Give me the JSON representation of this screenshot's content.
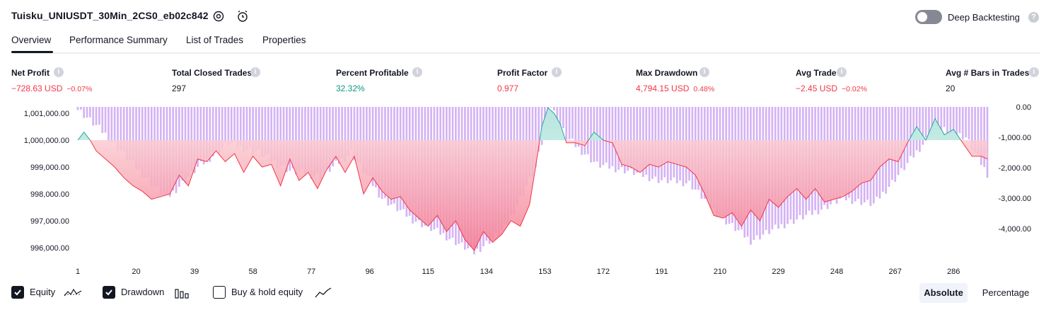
{
  "header": {
    "strategy_name": "Tuisku_UNIUSDT_30Min_2CS0_eb02c842",
    "deep_backtesting_label": "Deep Backtesting",
    "deep_backtesting_on": false
  },
  "tabs": [
    {
      "label": "Overview",
      "active": true
    },
    {
      "label": "Performance Summary",
      "active": false
    },
    {
      "label": "List of Trades",
      "active": false
    },
    {
      "label": "Properties",
      "active": false
    }
  ],
  "metrics": [
    {
      "label": "Net Profit",
      "value": "−728.63 USD",
      "pct": "−0.07%",
      "color": "#f23645"
    },
    {
      "label": "Total Closed Trades",
      "value": "297",
      "pct": "",
      "color": "#131722"
    },
    {
      "label": "Percent Profitable",
      "value": "32.32%",
      "pct": "",
      "color": "#089981"
    },
    {
      "label": "Profit Factor",
      "value": "0.977",
      "pct": "",
      "color": "#f23645"
    },
    {
      "label": "Max Drawdown",
      "value": "4,794.15 USD",
      "pct": "0.48%",
      "color": "#f23645"
    },
    {
      "label": "Avg Trade",
      "value": "−2.45 USD",
      "pct": "−0.02%",
      "color": "#f23645"
    },
    {
      "label": "Avg # Bars in Trades",
      "value": "20",
      "pct": "",
      "color": "#131722"
    }
  ],
  "chart_data": {
    "type": "area",
    "left_axis": {
      "ticks": [
        "1,001,000.00",
        "1,000,000.00",
        "999,000.00",
        "998,000.00",
        "997,000.00",
        "996,000.00"
      ],
      "tick_values": [
        1001000,
        1000000,
        999000,
        998000,
        997000,
        996000
      ]
    },
    "right_axis": {
      "ticks": [
        "0.00",
        "-1,000.00",
        "-2,000.00",
        "-3,000.00",
        "-4,000.00"
      ],
      "tick_values": [
        0,
        -1000,
        -2000,
        -3000,
        -4000
      ]
    },
    "x_ticks": [
      "1",
      "20",
      "39",
      "58",
      "77",
      "96",
      "115",
      "134",
      "153",
      "172",
      "191",
      "210",
      "229",
      "248",
      "267",
      "286"
    ],
    "series": [
      {
        "name": "Equity",
        "baseline": 1000000,
        "x": [
          1,
          3,
          5,
          7,
          10,
          13,
          16,
          19,
          22,
          25,
          28,
          31,
          34,
          37,
          40,
          43,
          46,
          49,
          52,
          55,
          58,
          61,
          64,
          67,
          70,
          73,
          76,
          79,
          82,
          85,
          88,
          91,
          94,
          97,
          100,
          103,
          106,
          109,
          112,
          115,
          118,
          121,
          124,
          127,
          130,
          133,
          136,
          139,
          142,
          145,
          148,
          150,
          152,
          154,
          156,
          158,
          160,
          163,
          166,
          169,
          172,
          175,
          178,
          181,
          184,
          187,
          190,
          193,
          196,
          199,
          202,
          205,
          208,
          211,
          214,
          217,
          220,
          223,
          226,
          229,
          232,
          235,
          238,
          241,
          244,
          247,
          250,
          253,
          256,
          259,
          262,
          265,
          268,
          271,
          274,
          277,
          280,
          283,
          286,
          289,
          292,
          295,
          297
        ],
        "values": [
          1000000,
          1000300,
          1000000,
          999600,
          999300,
          999000,
          998600,
          998300,
          998100,
          997800,
          997900,
          998000,
          998700,
          998300,
          999300,
          999200,
          999600,
          999200,
          999500,
          998800,
          999400,
          999000,
          999100,
          998300,
          999300,
          998500,
          998800,
          998200,
          998900,
          999400,
          998800,
          999400,
          998000,
          998600,
          998100,
          997800,
          997900,
          997400,
          997100,
          996800,
          997200,
          996600,
          997000,
          996300,
          995900,
          996600,
          996200,
          996500,
          997000,
          996800,
          997600,
          999000,
          1000500,
          1001200,
          1001000,
          1000600,
          999900,
          999900,
          999800,
          1000300,
          1000000,
          999900,
          999100,
          999000,
          998800,
          999100,
          999000,
          999200,
          999100,
          999000,
          998700,
          998000,
          997200,
          997100,
          997300,
          996800,
          997400,
          997000,
          997800,
          997500,
          997900,
          998200,
          997800,
          998200,
          997700,
          997800,
          997900,
          998100,
          998400,
          998500,
          999000,
          999300,
          999200,
          999900,
          1000500,
          1000000,
          1000800,
          1000200,
          1000400,
          999900,
          999400,
          999400,
          999300
        ]
      },
      {
        "name": "Drawdown",
        "unit": "USD",
        "values_note": "bars hang from 0.00 on the right axis",
        "x": [
          1,
          10,
          20,
          30,
          40,
          50,
          60,
          70,
          80,
          90,
          100,
          110,
          120,
          130,
          140,
          150,
          155,
          160,
          170,
          180,
          190,
          200,
          210,
          220,
          230,
          240,
          250,
          260,
          270,
          280,
          290,
          297
        ],
        "values": [
          -80,
          -900,
          -2000,
          -3000,
          -2000,
          -1200,
          -1500,
          -2100,
          -2300,
          -1500,
          -3000,
          -3700,
          -4200,
          -4794,
          -4000,
          -2000,
          0,
          -1000,
          -1900,
          -2100,
          -2400,
          -2500,
          -3600,
          -4400,
          -3900,
          -3500,
          -3000,
          -3200,
          -2000,
          -700,
          -1000,
          -2200
        ]
      },
      {
        "name": "Buy & hold equity",
        "values": []
      }
    ],
    "grid": false
  },
  "legend": {
    "items": [
      {
        "label": "Equity",
        "checked": true,
        "icon": "equity-line-icon"
      },
      {
        "label": "Drawdown",
        "checked": true,
        "icon": "drawdown-bars-icon"
      },
      {
        "label": "Buy & hold equity",
        "checked": false,
        "icon": "buy-hold-line-icon"
      }
    ],
    "mode_buttons": [
      {
        "label": "Absolute",
        "active": true
      },
      {
        "label": "Percentage",
        "active": false
      }
    ]
  },
  "colors": {
    "text": "#131722",
    "loss_red": "#f23645",
    "profit_green": "#089981",
    "drawdown_bar": "#d4b3f4",
    "equity_above": "#26a69a",
    "equity_below": "#f23645"
  }
}
